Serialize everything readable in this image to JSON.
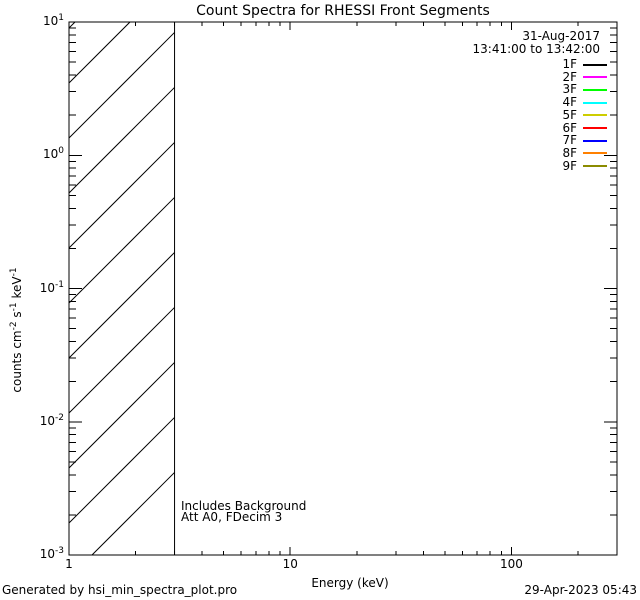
{
  "title": "Count Spectra for RHESSI Front Segments",
  "header": {
    "date": "31-Aug-2017",
    "time_range": "13:41:00 to 13:42:00"
  },
  "legend": {
    "entries": [
      {
        "label": "1F",
        "color": "#000000"
      },
      {
        "label": "2F",
        "color": "#FF00FF"
      },
      {
        "label": "3F",
        "color": "#00FF00"
      },
      {
        "label": "4F",
        "color": "#00FFFF"
      },
      {
        "label": "5F",
        "color": "#CDCD00"
      },
      {
        "label": "6F",
        "color": "#FF0000"
      },
      {
        "label": "7F",
        "color": "#0000FF"
      },
      {
        "label": "8F",
        "color": "#FF8000"
      },
      {
        "label": "9F",
        "color": "#8B8B00"
      }
    ]
  },
  "plot_annotations": {
    "background_note": "Includes Background",
    "attenuator_note": "Att A0, FDecim 3"
  },
  "axes": {
    "x": {
      "title": "Energy (keV)",
      "scale": "log",
      "range": [
        1,
        300
      ],
      "tick_labels": [
        "1",
        "10",
        "100"
      ]
    },
    "y": {
      "scale": "log",
      "range": [
        0.001,
        10
      ],
      "tick_labels": [
        {
          "base": "10",
          "sup": "1"
        },
        {
          "base": "10",
          "sup": "0"
        },
        {
          "base": "10",
          "sup": "-1"
        },
        {
          "base": "10",
          "sup": "-2"
        },
        {
          "base": "10",
          "sup": "-3"
        }
      ],
      "title_parts": [
        {
          "text": "counts cm"
        },
        {
          "sup": "-2"
        },
        {
          "text": " s"
        },
        {
          "sup": "-1"
        },
        {
          "text": " keV"
        },
        {
          "sup": "-1"
        }
      ]
    }
  },
  "footer": {
    "generated_by": "Generated by hsi_min_spectra_plot.pro",
    "timestamp": "29-Apr-2023 05:43"
  },
  "chart_data": {
    "type": "line",
    "title": "Count Spectra for RHESSI Front Segments",
    "xlabel": "Energy (keV)",
    "ylabel": "counts cm^-2 s^-1 keV^-1",
    "xscale": "log",
    "yscale": "log",
    "xlim": [
      1,
      300
    ],
    "ylim": [
      0.001,
      10
    ],
    "grid": false,
    "legend_position": "top-right-inside",
    "series": [
      {
        "name": "1F",
        "color": "#000000",
        "values": []
      },
      {
        "name": "2F",
        "color": "#FF00FF",
        "values": []
      },
      {
        "name": "3F",
        "color": "#00FF00",
        "values": []
      },
      {
        "name": "4F",
        "color": "#00FFFF",
        "values": []
      },
      {
        "name": "5F",
        "color": "#CDCD00",
        "values": []
      },
      {
        "name": "6F",
        "color": "#FF0000",
        "values": []
      },
      {
        "name": "7F",
        "color": "#0000FF",
        "values": []
      },
      {
        "name": "8F",
        "color": "#FF8000",
        "values": []
      },
      {
        "name": "9F",
        "color": "#8B8B00",
        "values": []
      }
    ],
    "hatched_region_x": [
      1,
      3
    ],
    "annotations": [
      "31-Aug-2017",
      "13:41:00 to 13:42:00",
      "Includes Background",
      "Att A0, FDecim 3"
    ],
    "note": "No spectra curves are drawn in the plot area; only axes, legend and a diagonally hatched low-energy region from 1 to 3 keV are visible."
  }
}
